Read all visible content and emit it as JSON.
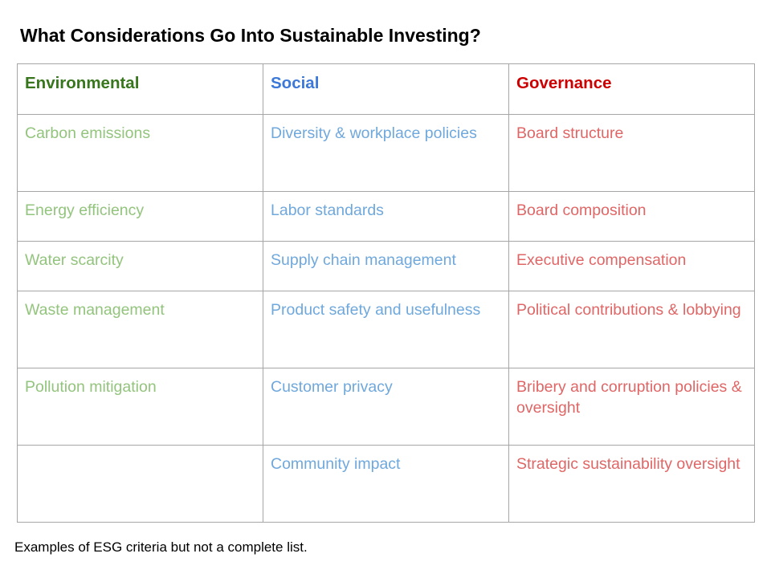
{
  "title": "What Considerations Go Into Sustainable Investing?",
  "colors": {
    "environmental_header": "#38761d",
    "social_header": "#3c78d8",
    "governance_header": "#cc0000",
    "environmental_text": "#93c47d",
    "social_text": "#6fa8dc",
    "governance_text": "#e06666",
    "border": "#a6a6a6"
  },
  "table": {
    "headers": {
      "environmental": "Environmental",
      "social": "Social",
      "governance": "Governance"
    },
    "rows": [
      {
        "environmental": "Carbon emissions",
        "social": "Diversity & workplace policies",
        "governance": "Board structure"
      },
      {
        "environmental": "Energy efficiency",
        "social": "Labor standards",
        "governance": "Board composition"
      },
      {
        "environmental": "Water scarcity",
        "social": "Supply chain management",
        "governance": "Executive compensation"
      },
      {
        "environmental": "Waste management",
        "social": "Product safety and usefulness",
        "governance": "Political contributions & lobbying"
      },
      {
        "environmental": "Pollution mitigation",
        "social": "Customer privacy",
        "governance": "Bribery and corruption policies & oversight"
      },
      {
        "environmental": "",
        "social": "Community impact",
        "governance": "Strategic sustainability oversight"
      }
    ]
  },
  "footnote": "Examples of ESG criteria but not a complete list."
}
